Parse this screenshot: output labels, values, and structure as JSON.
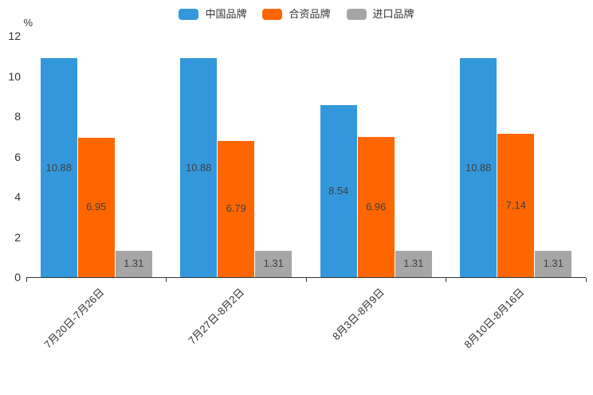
{
  "chart_data": {
    "type": "bar",
    "title": "",
    "categories": [
      "7月20日-7月26日",
      "7月27日-8月2日",
      "8月3日-8月9日",
      "8月10日-8月16日"
    ],
    "series": [
      {
        "name": "中国品牌",
        "color": "#3398db",
        "values": [
          10.88,
          10.88,
          8.54,
          10.88
        ]
      },
      {
        "name": "合资品牌",
        "color": "#ff6600",
        "values": [
          6.95,
          6.79,
          6.96,
          7.14
        ]
      },
      {
        "name": "进口品牌",
        "color": "#a6a6a6",
        "values": [
          1.31,
          1.31,
          1.31,
          1.31
        ]
      }
    ],
    "xlabel": "",
    "ylabel": "%",
    "ylim": [
      0,
      12
    ],
    "yticks": [
      0,
      2,
      4,
      6,
      8,
      10,
      12
    ],
    "grid": false,
    "legend_position": "top",
    "bar_labels": true,
    "xlabel_rotation": 45,
    "axis_color": "#333333",
    "bar_label_color": "#404040"
  }
}
